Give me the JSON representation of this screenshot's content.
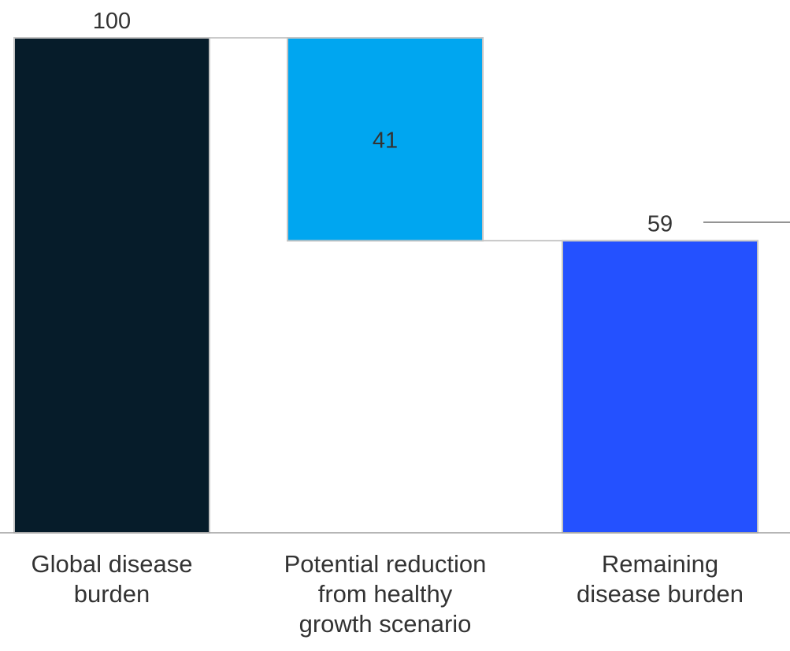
{
  "chart_data": {
    "type": "bar",
    "subtype": "waterfall",
    "categories": [
      [
        "Global disease",
        "burden"
      ],
      [
        "Potential reduction",
        "from healthy",
        "growth scenario"
      ],
      [
        "Remaining",
        "disease burden"
      ]
    ],
    "category_labels": [
      "Global disease burden",
      "Potential reduction from healthy growth scenario",
      "Remaining disease burden"
    ],
    "values": [
      100,
      41,
      59
    ],
    "bar_kinds": [
      "total",
      "decrease",
      "total"
    ],
    "colors": [
      "#061c2a",
      "#00a6f0",
      "#2451ff"
    ],
    "connector_color": "#b8b8b8",
    "axis_color": "#9e9e9e",
    "label_color": "#333333",
    "title": "",
    "xlabel": "",
    "ylabel": "",
    "ylim": [
      0,
      100
    ],
    "grid": false,
    "legend": "none"
  }
}
